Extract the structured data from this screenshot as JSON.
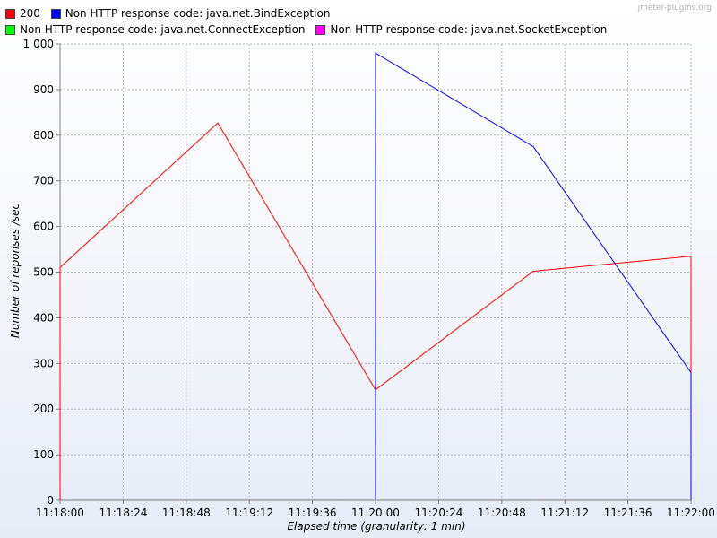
{
  "watermark": "jmeter-plugins.org",
  "chart_data": {
    "type": "line",
    "xlabel": "Elapsed time (granularity: 1 min)",
    "ylabel": "Number of reponses /sec",
    "ylim": [
      0,
      1000
    ],
    "y_ticks": [
      "0",
      "100",
      "200",
      "300",
      "400",
      "500",
      "600",
      "700",
      "800",
      "900",
      "1 000"
    ],
    "x_ticks": [
      "11:18:00",
      "11:18:24",
      "11:18:48",
      "11:19:12",
      "11:19:36",
      "11:20:00",
      "11:20:24",
      "11:20:48",
      "11:21:12",
      "11:21:36",
      "11:22:00"
    ],
    "grid": true,
    "legend_position": "top",
    "series": [
      {
        "name": "200",
        "color": "#ff0000",
        "x": [
          "11:18:00",
          "11:18:00",
          "11:19:00",
          "11:20:00",
          "11:21:00",
          "11:22:00",
          "11:22:00"
        ],
        "values": [
          0,
          510,
          827,
          242,
          502,
          535,
          0
        ]
      },
      {
        "name": "Non HTTP response code: java.net.BindException",
        "color": "#0000ff",
        "x": [
          "11:20:00",
          "11:20:00",
          "11:21:00",
          "11:22:00",
          "11:22:00"
        ],
        "values": [
          0,
          980,
          775,
          280,
          0
        ]
      },
      {
        "name": "Non HTTP response code: java.net.ConnectException",
        "color": "#00ff00",
        "x": [
          "11:21:00",
          "11:21:00",
          "11:21:00"
        ],
        "values": [
          0,
          1,
          0
        ]
      },
      {
        "name": "Non HTTP response code: java.net.SocketException",
        "color": "#ff00ff",
        "x": [],
        "values": []
      }
    ]
  }
}
